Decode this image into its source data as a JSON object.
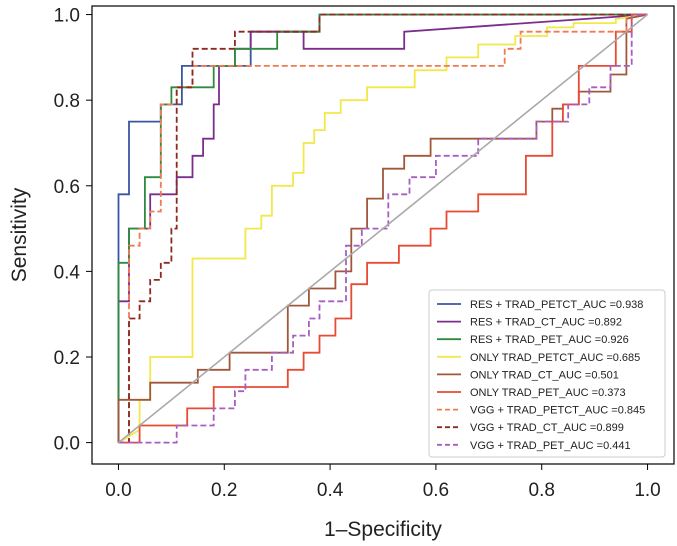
{
  "chart_data": {
    "type": "line",
    "title": "",
    "xlabel": "1–Specificity",
    "ylabel": "Sensitivity",
    "xlim": [
      -0.05,
      1.05
    ],
    "ylim": [
      -0.05,
      1.02
    ],
    "xticks": [
      0.0,
      0.2,
      0.4,
      0.6,
      0.8,
      1.0
    ],
    "yticks": [
      0.0,
      0.2,
      0.4,
      0.6,
      0.8,
      1.0
    ],
    "xtick_labels": [
      "0.0",
      "0.2",
      "0.4",
      "0.6",
      "0.8",
      "1.0"
    ],
    "ytick_labels": [
      "0.0",
      "0.2",
      "0.4",
      "0.6",
      "0.8",
      "1.0"
    ],
    "legend_position": "bottom-right",
    "diagonal": {
      "x": [
        0,
        1
      ],
      "y": [
        0,
        1
      ],
      "color": "#aaaaaa"
    },
    "series": [
      {
        "name": "RES + TRAD_PETCT_AUC =0.938",
        "color": "#3a55a4",
        "dash": "solid",
        "x": [
          0,
          0,
          0.02,
          0.02,
          0.08,
          0.08,
          0.12,
          0.12,
          0.25,
          0.25,
          0.38,
          0.38,
          0.48,
          0.48,
          1.0
        ],
        "y": [
          0,
          0.58,
          0.58,
          0.75,
          0.75,
          0.79,
          0.79,
          0.88,
          0.88,
          0.96,
          0.96,
          1.0,
          1.0,
          1.0,
          1.0
        ]
      },
      {
        "name": "RES + TRAD_CT_AUC =0.892",
        "color": "#7b2d8e",
        "dash": "solid",
        "x": [
          0,
          0,
          0.02,
          0.02,
          0.06,
          0.06,
          0.11,
          0.11,
          0.14,
          0.14,
          0.16,
          0.16,
          0.18,
          0.18,
          0.19,
          0.19,
          0.22,
          0.22,
          0.25,
          0.25,
          0.35,
          0.35,
          0.54,
          0.54,
          1.0
        ],
        "y": [
          0,
          0.33,
          0.33,
          0.5,
          0.5,
          0.58,
          0.58,
          0.62,
          0.62,
          0.67,
          0.67,
          0.71,
          0.71,
          0.79,
          0.79,
          0.88,
          0.88,
          0.92,
          0.92,
          0.96,
          0.96,
          0.92,
          0.92,
          0.96,
          1.0
        ]
      },
      {
        "name": "RES + TRAD_PET_AUC =0.926",
        "color": "#2e8b3e",
        "dash": "solid",
        "x": [
          0,
          0,
          0.02,
          0.02,
          0.05,
          0.05,
          0.08,
          0.08,
          0.1,
          0.1,
          0.12,
          0.12,
          0.18,
          0.18,
          0.22,
          0.22,
          0.3,
          0.3,
          0.38,
          0.38,
          1.0
        ],
        "y": [
          0,
          0.42,
          0.42,
          0.5,
          0.5,
          0.62,
          0.62,
          0.79,
          0.79,
          0.83,
          0.83,
          0.83,
          0.83,
          0.88,
          0.88,
          0.92,
          0.92,
          0.96,
          0.96,
          1.0,
          1.0
        ]
      },
      {
        "name": "ONLY TRAD_PETCT_AUC =0.685",
        "color": "#f2e84a",
        "dash": "solid",
        "x": [
          0,
          0.04,
          0.04,
          0.06,
          0.06,
          0.14,
          0.14,
          0.24,
          0.24,
          0.27,
          0.27,
          0.29,
          0.29,
          0.33,
          0.33,
          0.35,
          0.35,
          0.37,
          0.37,
          0.39,
          0.39,
          0.42,
          0.42,
          0.47,
          0.47,
          0.56,
          0.56,
          0.62,
          0.62,
          0.68,
          0.68,
          0.75,
          0.75,
          0.81,
          0.81,
          0.86,
          0.86,
          0.94,
          0.94,
          1.0
        ],
        "y": [
          0,
          0.03,
          0.1,
          0.1,
          0.2,
          0.2,
          0.43,
          0.43,
          0.5,
          0.5,
          0.53,
          0.53,
          0.6,
          0.6,
          0.63,
          0.63,
          0.7,
          0.7,
          0.73,
          0.73,
          0.77,
          0.77,
          0.8,
          0.8,
          0.83,
          0.83,
          0.87,
          0.87,
          0.9,
          0.9,
          0.93,
          0.93,
          0.95,
          0.95,
          0.97,
          0.97,
          0.98,
          0.98,
          0.99,
          1.0
        ]
      },
      {
        "name": "ONLY TRAD_CT_AUC =0.501",
        "color": "#a0573a",
        "dash": "solid",
        "x": [
          0,
          0,
          0.06,
          0.06,
          0.15,
          0.15,
          0.21,
          0.21,
          0.32,
          0.32,
          0.36,
          0.36,
          0.41,
          0.41,
          0.44,
          0.44,
          0.47,
          0.47,
          0.5,
          0.5,
          0.54,
          0.54,
          0.59,
          0.59,
          0.71,
          0.71,
          0.79,
          0.79,
          0.82,
          0.82,
          0.84,
          0.84,
          0.87,
          0.87,
          0.93,
          0.93,
          0.96,
          0.96,
          1.0
        ],
        "y": [
          0,
          0.1,
          0.1,
          0.14,
          0.14,
          0.17,
          0.17,
          0.21,
          0.21,
          0.32,
          0.32,
          0.36,
          0.36,
          0.4,
          0.4,
          0.5,
          0.5,
          0.57,
          0.57,
          0.64,
          0.64,
          0.67,
          0.67,
          0.71,
          0.71,
          0.71,
          0.71,
          0.75,
          0.75,
          0.78,
          0.78,
          0.79,
          0.79,
          0.82,
          0.82,
          0.86,
          0.86,
          0.99,
          1.0
        ]
      },
      {
        "name": "ONLY TRAD_PET_AUC =0.373",
        "color": "#e84a33",
        "dash": "solid",
        "x": [
          0,
          0.04,
          0.04,
          0.13,
          0.13,
          0.18,
          0.18,
          0.32,
          0.32,
          0.35,
          0.35,
          0.38,
          0.38,
          0.41,
          0.41,
          0.44,
          0.44,
          0.47,
          0.47,
          0.53,
          0.53,
          0.59,
          0.59,
          0.62,
          0.62,
          0.65,
          0.65,
          0.68,
          0.68,
          0.77,
          0.77,
          0.82,
          0.82,
          0.84,
          0.84,
          0.87,
          0.87,
          0.94,
          0.94,
          0.97,
          0.97,
          1.0
        ],
        "y": [
          0,
          0.0,
          0.04,
          0.04,
          0.08,
          0.08,
          0.13,
          0.13,
          0.17,
          0.17,
          0.21,
          0.21,
          0.25,
          0.25,
          0.29,
          0.29,
          0.37,
          0.37,
          0.42,
          0.42,
          0.46,
          0.46,
          0.5,
          0.5,
          0.54,
          0.54,
          0.54,
          0.54,
          0.58,
          0.58,
          0.67,
          0.67,
          0.75,
          0.75,
          0.79,
          0.79,
          0.88,
          0.88,
          0.96,
          0.96,
          1.0,
          1.0
        ]
      },
      {
        "name": "VGG + TRAD_PETCT_AUC =0.845",
        "color": "#f07a52",
        "dash": "dashed",
        "x": [
          0,
          0.02,
          0.02,
          0.04,
          0.04,
          0.06,
          0.06,
          0.08,
          0.08,
          0.11,
          0.11,
          0.14,
          0.14,
          0.73,
          0.73,
          0.76,
          0.76,
          0.96,
          0.96,
          1.0
        ],
        "y": [
          0,
          0.0,
          0.46,
          0.46,
          0.5,
          0.5,
          0.54,
          0.54,
          0.79,
          0.79,
          0.83,
          0.83,
          0.88,
          0.88,
          0.92,
          0.92,
          0.96,
          0.96,
          1.0,
          1.0
        ]
      },
      {
        "name": "VGG + TRAD_CT_AUC =0.899",
        "color": "#8b2a1e",
        "dash": "dashed",
        "x": [
          0,
          0.02,
          0.02,
          0.04,
          0.04,
          0.06,
          0.06,
          0.08,
          0.08,
          0.1,
          0.1,
          0.11,
          0.11,
          0.14,
          0.14,
          0.19,
          0.19,
          0.22,
          0.22,
          0.25,
          0.25,
          0.38,
          0.38,
          1.0
        ],
        "y": [
          0,
          0.0,
          0.29,
          0.29,
          0.33,
          0.33,
          0.38,
          0.38,
          0.42,
          0.42,
          0.5,
          0.5,
          0.83,
          0.83,
          0.92,
          0.92,
          0.92,
          0.92,
          0.96,
          0.96,
          0.96,
          0.96,
          1.0,
          1.0
        ]
      },
      {
        "name": "VGG + TRAD_PET_AUC =0.441",
        "color": "#a65fc0",
        "dash": "dashed",
        "x": [
          0,
          0.11,
          0.11,
          0.18,
          0.18,
          0.22,
          0.22,
          0.24,
          0.24,
          0.29,
          0.29,
          0.33,
          0.33,
          0.36,
          0.36,
          0.38,
          0.38,
          0.43,
          0.43,
          0.46,
          0.46,
          0.51,
          0.51,
          0.55,
          0.55,
          0.6,
          0.6,
          0.68,
          0.68,
          0.79,
          0.79,
          0.85,
          0.85,
          0.89,
          0.89,
          0.93,
          0.93,
          0.97,
          0.97,
          1.0
        ],
        "y": [
          0,
          0.0,
          0.04,
          0.04,
          0.08,
          0.08,
          0.12,
          0.12,
          0.17,
          0.17,
          0.21,
          0.21,
          0.25,
          0.25,
          0.29,
          0.29,
          0.33,
          0.33,
          0.46,
          0.46,
          0.5,
          0.5,
          0.58,
          0.58,
          0.62,
          0.62,
          0.67,
          0.67,
          0.71,
          0.71,
          0.75,
          0.75,
          0.79,
          0.79,
          0.83,
          0.83,
          0.88,
          0.88,
          1.0,
          1.0
        ]
      }
    ]
  }
}
